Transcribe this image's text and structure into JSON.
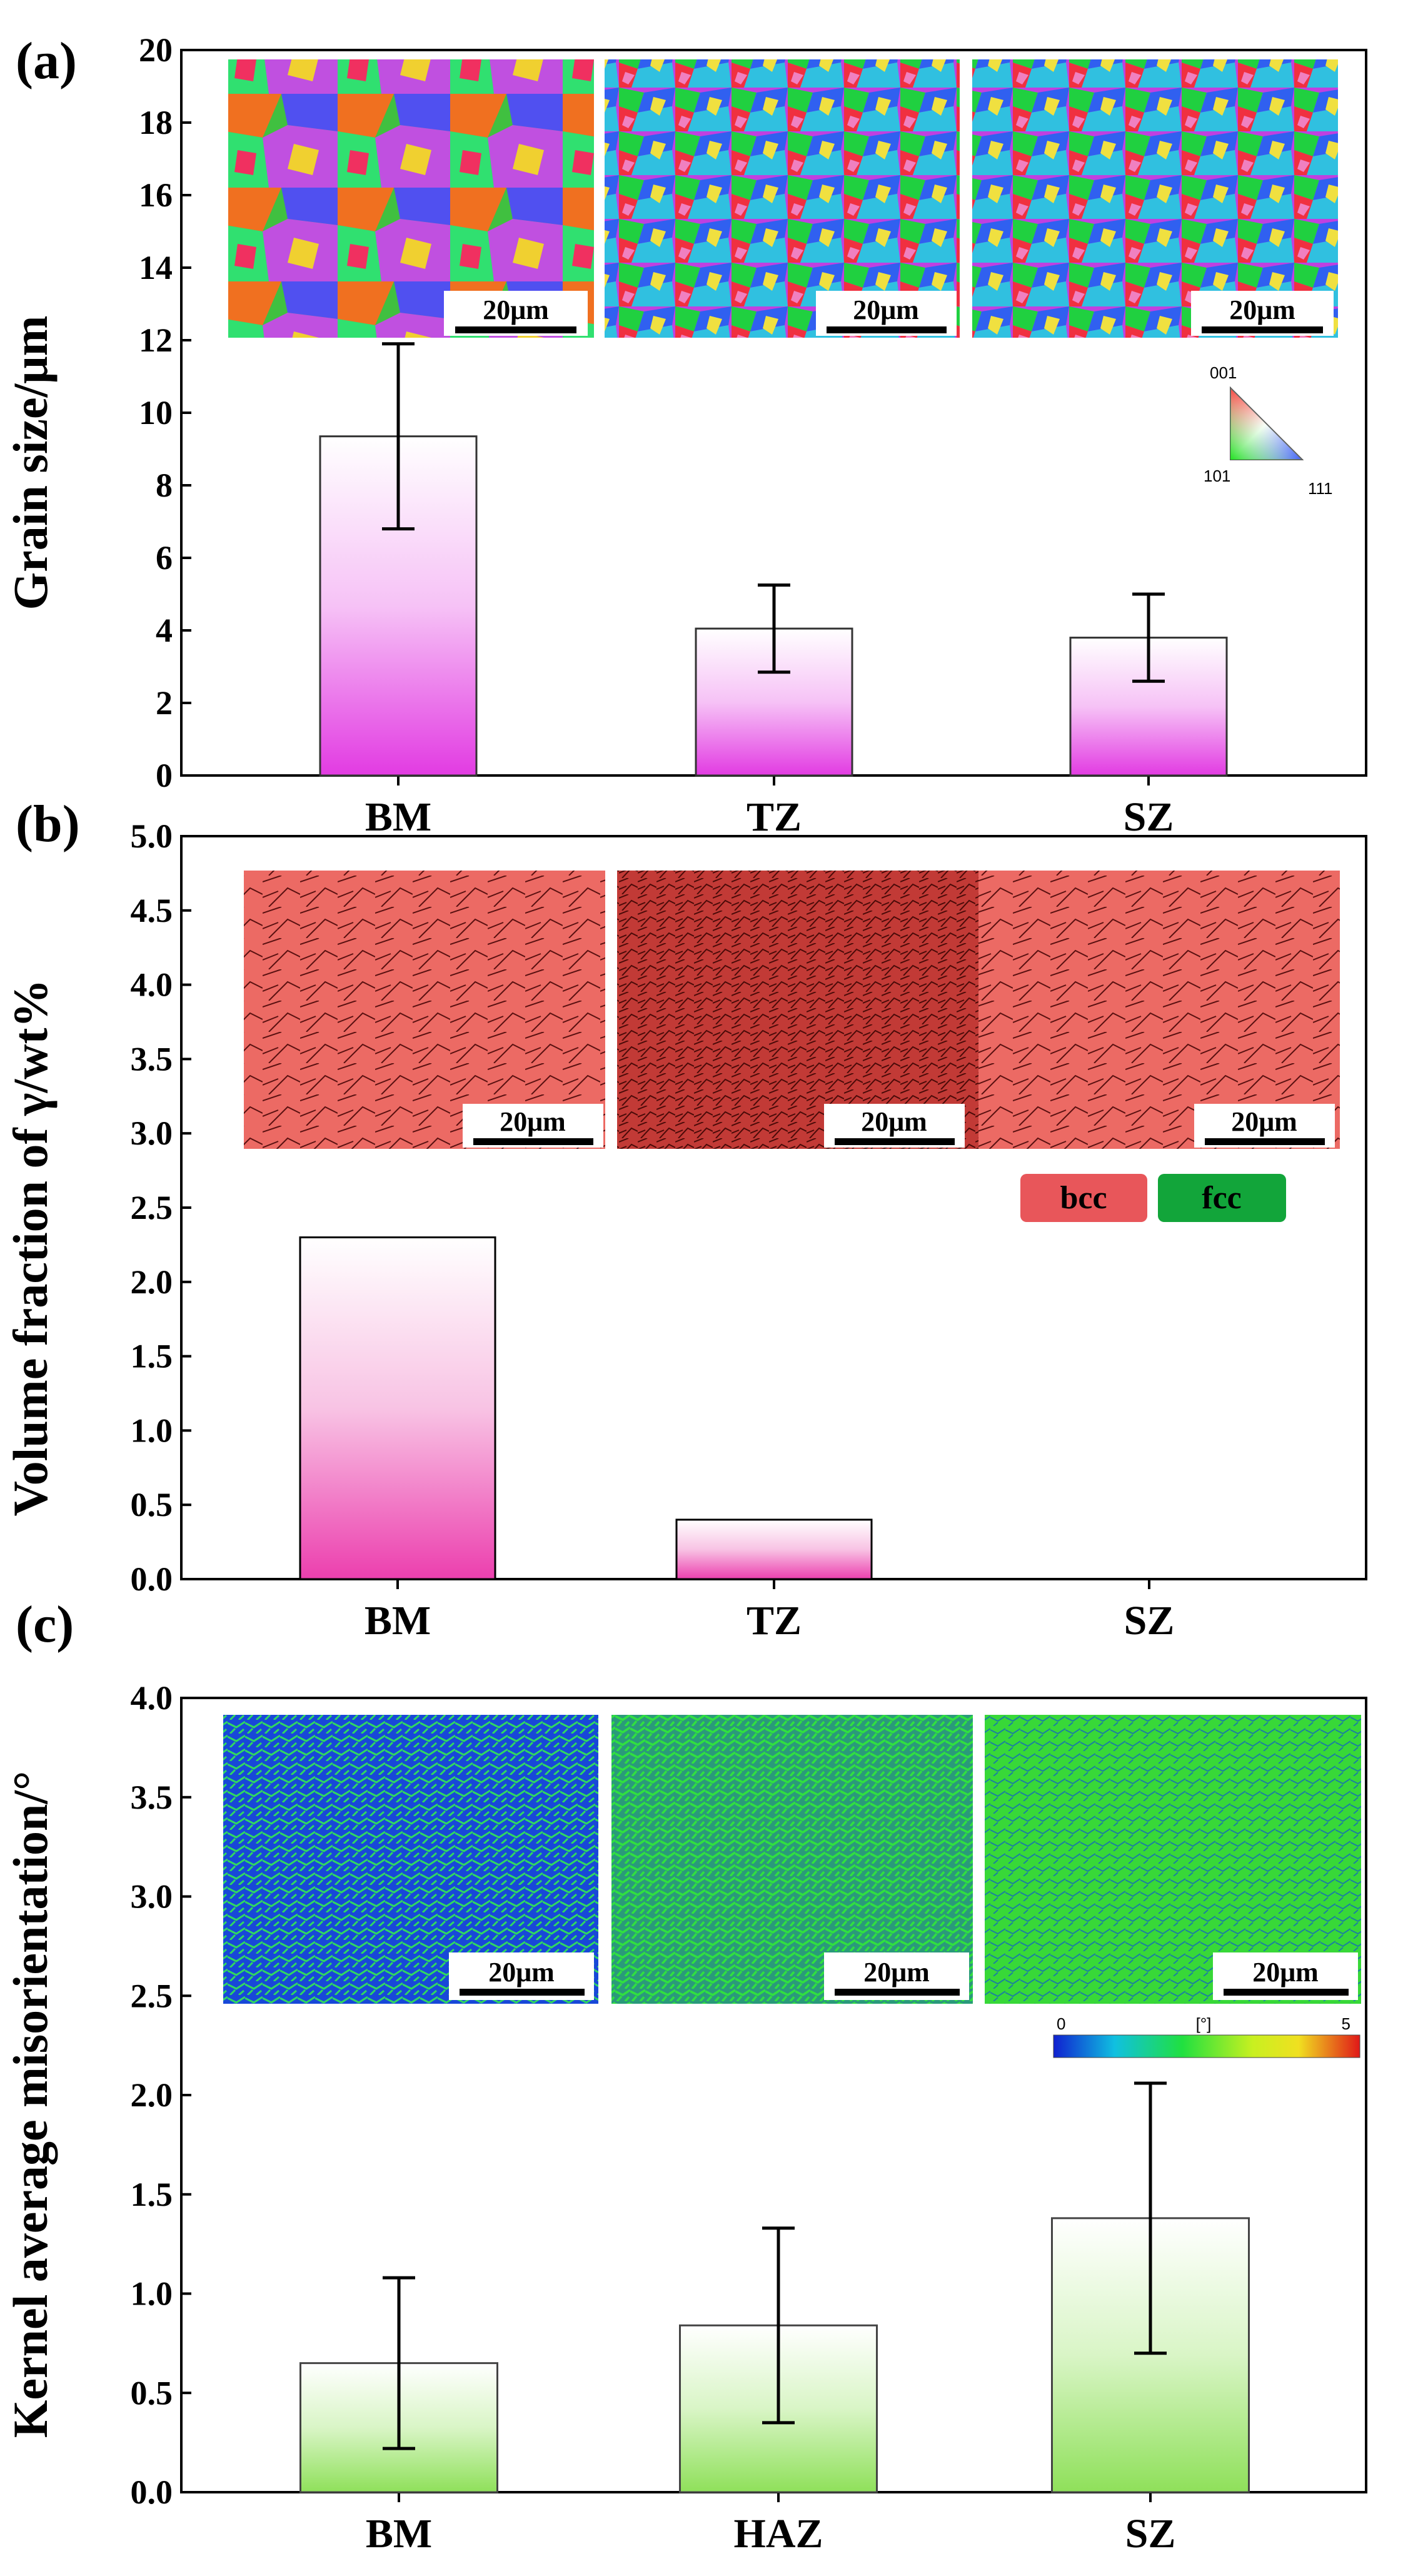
{
  "colors": {
    "panel_a_bar_bottom": "#e23be2",
    "panel_b_bar_bottom": "#ec3fae",
    "panel_c_bar_bottom": "#8fe05a",
    "bcc": "#e8565a",
    "fcc": "#12a53a"
  },
  "chart_data": [
    {
      "type": "bar",
      "panel_label": "(a)",
      "categories": [
        "BM",
        "TZ",
        "SZ"
      ],
      "values": [
        9.35,
        4.05,
        3.8
      ],
      "errors": [
        2.55,
        1.2,
        1.2
      ],
      "ylabel": "Grain size/μm",
      "ylim": [
        0,
        20
      ],
      "yticks": [
        "0",
        "2",
        "4",
        "6",
        "8",
        "10",
        "12",
        "14",
        "16",
        "18",
        "20"
      ],
      "insets": [
        {
          "name": "BM IPF map",
          "scale_bar": "20μm"
        },
        {
          "name": "TZ IPF map",
          "scale_bar": "20μm"
        },
        {
          "name": "SZ IPF map",
          "scale_bar": "20μm"
        }
      ],
      "legend": {
        "type": "ipf-triangle",
        "labels": [
          "001",
          "101",
          "111"
        ]
      }
    },
    {
      "type": "bar",
      "panel_label": "(b)",
      "categories": [
        "BM",
        "TZ",
        "SZ"
      ],
      "values": [
        2.3,
        0.4,
        0
      ],
      "ylabel": "Volume fraction of γ/wt%",
      "ylim": [
        0,
        5
      ],
      "yticks": [
        "0.0",
        "0.5",
        "1.0",
        "1.5",
        "2.0",
        "2.5",
        "3.0",
        "3.5",
        "4.0",
        "4.5",
        "5.0"
      ],
      "insets": [
        {
          "name": "BM phase map",
          "scale_bar": "20μm"
        },
        {
          "name": "TZ phase map",
          "scale_bar": "20μm"
        },
        {
          "name": "SZ phase map",
          "scale_bar": "20μm"
        }
      ],
      "legend": {
        "type": "phase",
        "entries": [
          "bcc",
          "fcc"
        ]
      }
    },
    {
      "type": "bar",
      "panel_label": "(c)",
      "categories": [
        "BM",
        "HAZ",
        "SZ"
      ],
      "values": [
        0.65,
        0.84,
        1.38
      ],
      "errors": [
        0.43,
        0.49,
        0.68
      ],
      "ylabel": "Kernel average misorientation/°",
      "ylim": [
        0,
        4
      ],
      "yticks": [
        "0.0",
        "0.5",
        "1.0",
        "1.5",
        "2.0",
        "2.5",
        "3.0",
        "3.5",
        "4.0"
      ],
      "insets": [
        {
          "name": "BM KAM map",
          "scale_bar": "20μm"
        },
        {
          "name": "HAZ KAM map",
          "scale_bar": "20μm"
        },
        {
          "name": "SZ KAM map",
          "scale_bar": "20μm"
        }
      ],
      "legend": {
        "type": "colorbar",
        "min": "0",
        "unit": "[°]",
        "max": "5"
      }
    }
  ]
}
